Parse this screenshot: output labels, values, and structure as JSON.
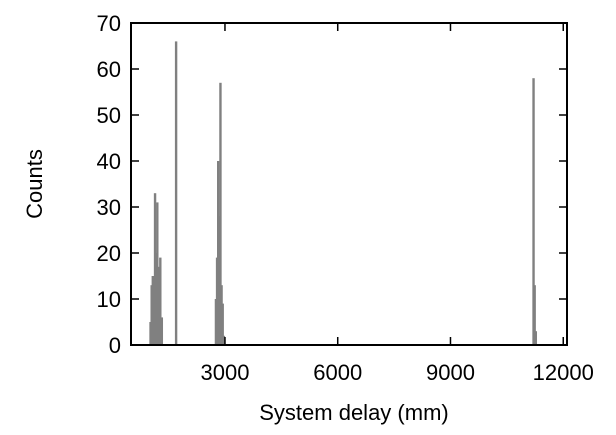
{
  "chart_data": {
    "type": "bar",
    "xlabel": "System delay (mm)",
    "ylabel": "Counts",
    "xlim": [
      500,
      12100
    ],
    "ylim": [
      0,
      70
    ],
    "xticks": [
      3000,
      6000,
      9000,
      12000
    ],
    "yticks": [
      0,
      10,
      20,
      30,
      40,
      50,
      60,
      70
    ],
    "bar_color": "#808080",
    "grid": false,
    "legend": "none",
    "x": [
      1020,
      1050,
      1080,
      1110,
      1140,
      1170,
      1200,
      1230,
      1280,
      1320,
      1700,
      2760,
      2790,
      2820,
      2850,
      2880,
      2910,
      2940,
      2970,
      11210,
      11240,
      11270
    ],
    "values": [
      5,
      13,
      15,
      15,
      33,
      20,
      31,
      17,
      19,
      6,
      66,
      10,
      19,
      40,
      28,
      57,
      13,
      9,
      2,
      58,
      13,
      3
    ]
  }
}
